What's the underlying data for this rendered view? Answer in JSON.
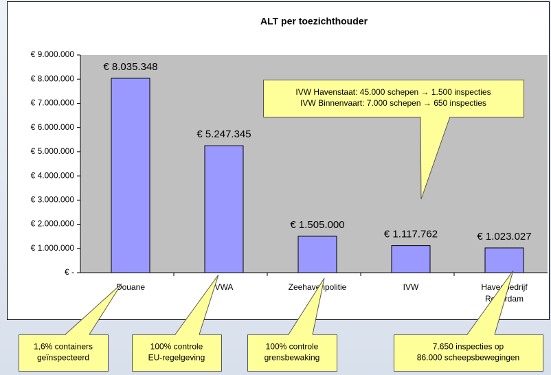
{
  "chart_data": {
    "type": "bar",
    "title": "ALT per toezichthouder",
    "categories": [
      "Douane",
      "VWA",
      "Zeehavenpolitie",
      "IVW",
      "Havenbedrijf Rotterdam"
    ],
    "values": [
      8035348,
      5247345,
      1505000,
      1117762,
      1023027
    ],
    "value_labels": [
      "€ 8.035.348",
      "€ 5.247.345",
      "€ 1.505.000",
      "€ 1.117.762",
      "€ 1.023.027"
    ],
    "color": "#9999ff",
    "plot_background": "#c0c0c0",
    "grid": false,
    "ylim": [
      0,
      9000000
    ],
    "yticks": [
      {
        "value": 0,
        "label": "€ -"
      },
      {
        "value": 1000000,
        "label": "€ 1.000.000"
      },
      {
        "value": 2000000,
        "label": "€ 2.000.000"
      },
      {
        "value": 3000000,
        "label": "€ 3.000.000"
      },
      {
        "value": 4000000,
        "label": "€ 4.000.000"
      },
      {
        "value": 5000000,
        "label": "€ 5.000.000"
      },
      {
        "value": 6000000,
        "label": "€ 6.000.000"
      },
      {
        "value": 7000000,
        "label": "€ 7.000.000"
      },
      {
        "value": 8000000,
        "label": "€ 8.000.000"
      },
      {
        "value": 9000000,
        "label": "€ 9.000.000"
      }
    ],
    "annotations": [
      {
        "lines": [
          "IVW Havenstaat: 45.000 schepen → 1.500 inspecties",
          "IVW Binnenvaart: 7.000 schepen → 650 inspecties"
        ]
      },
      {
        "lines": [
          "1,6% containers",
          "geïnspecteerd"
        ]
      },
      {
        "lines": [
          "100% controle",
          "EU-regelgeving"
        ]
      },
      {
        "lines": [
          "100% controle",
          "grensbewaking"
        ]
      },
      {
        "lines": [
          "7.650 inspecties op",
          "86.000 scheepsbewegingen"
        ]
      }
    ]
  }
}
